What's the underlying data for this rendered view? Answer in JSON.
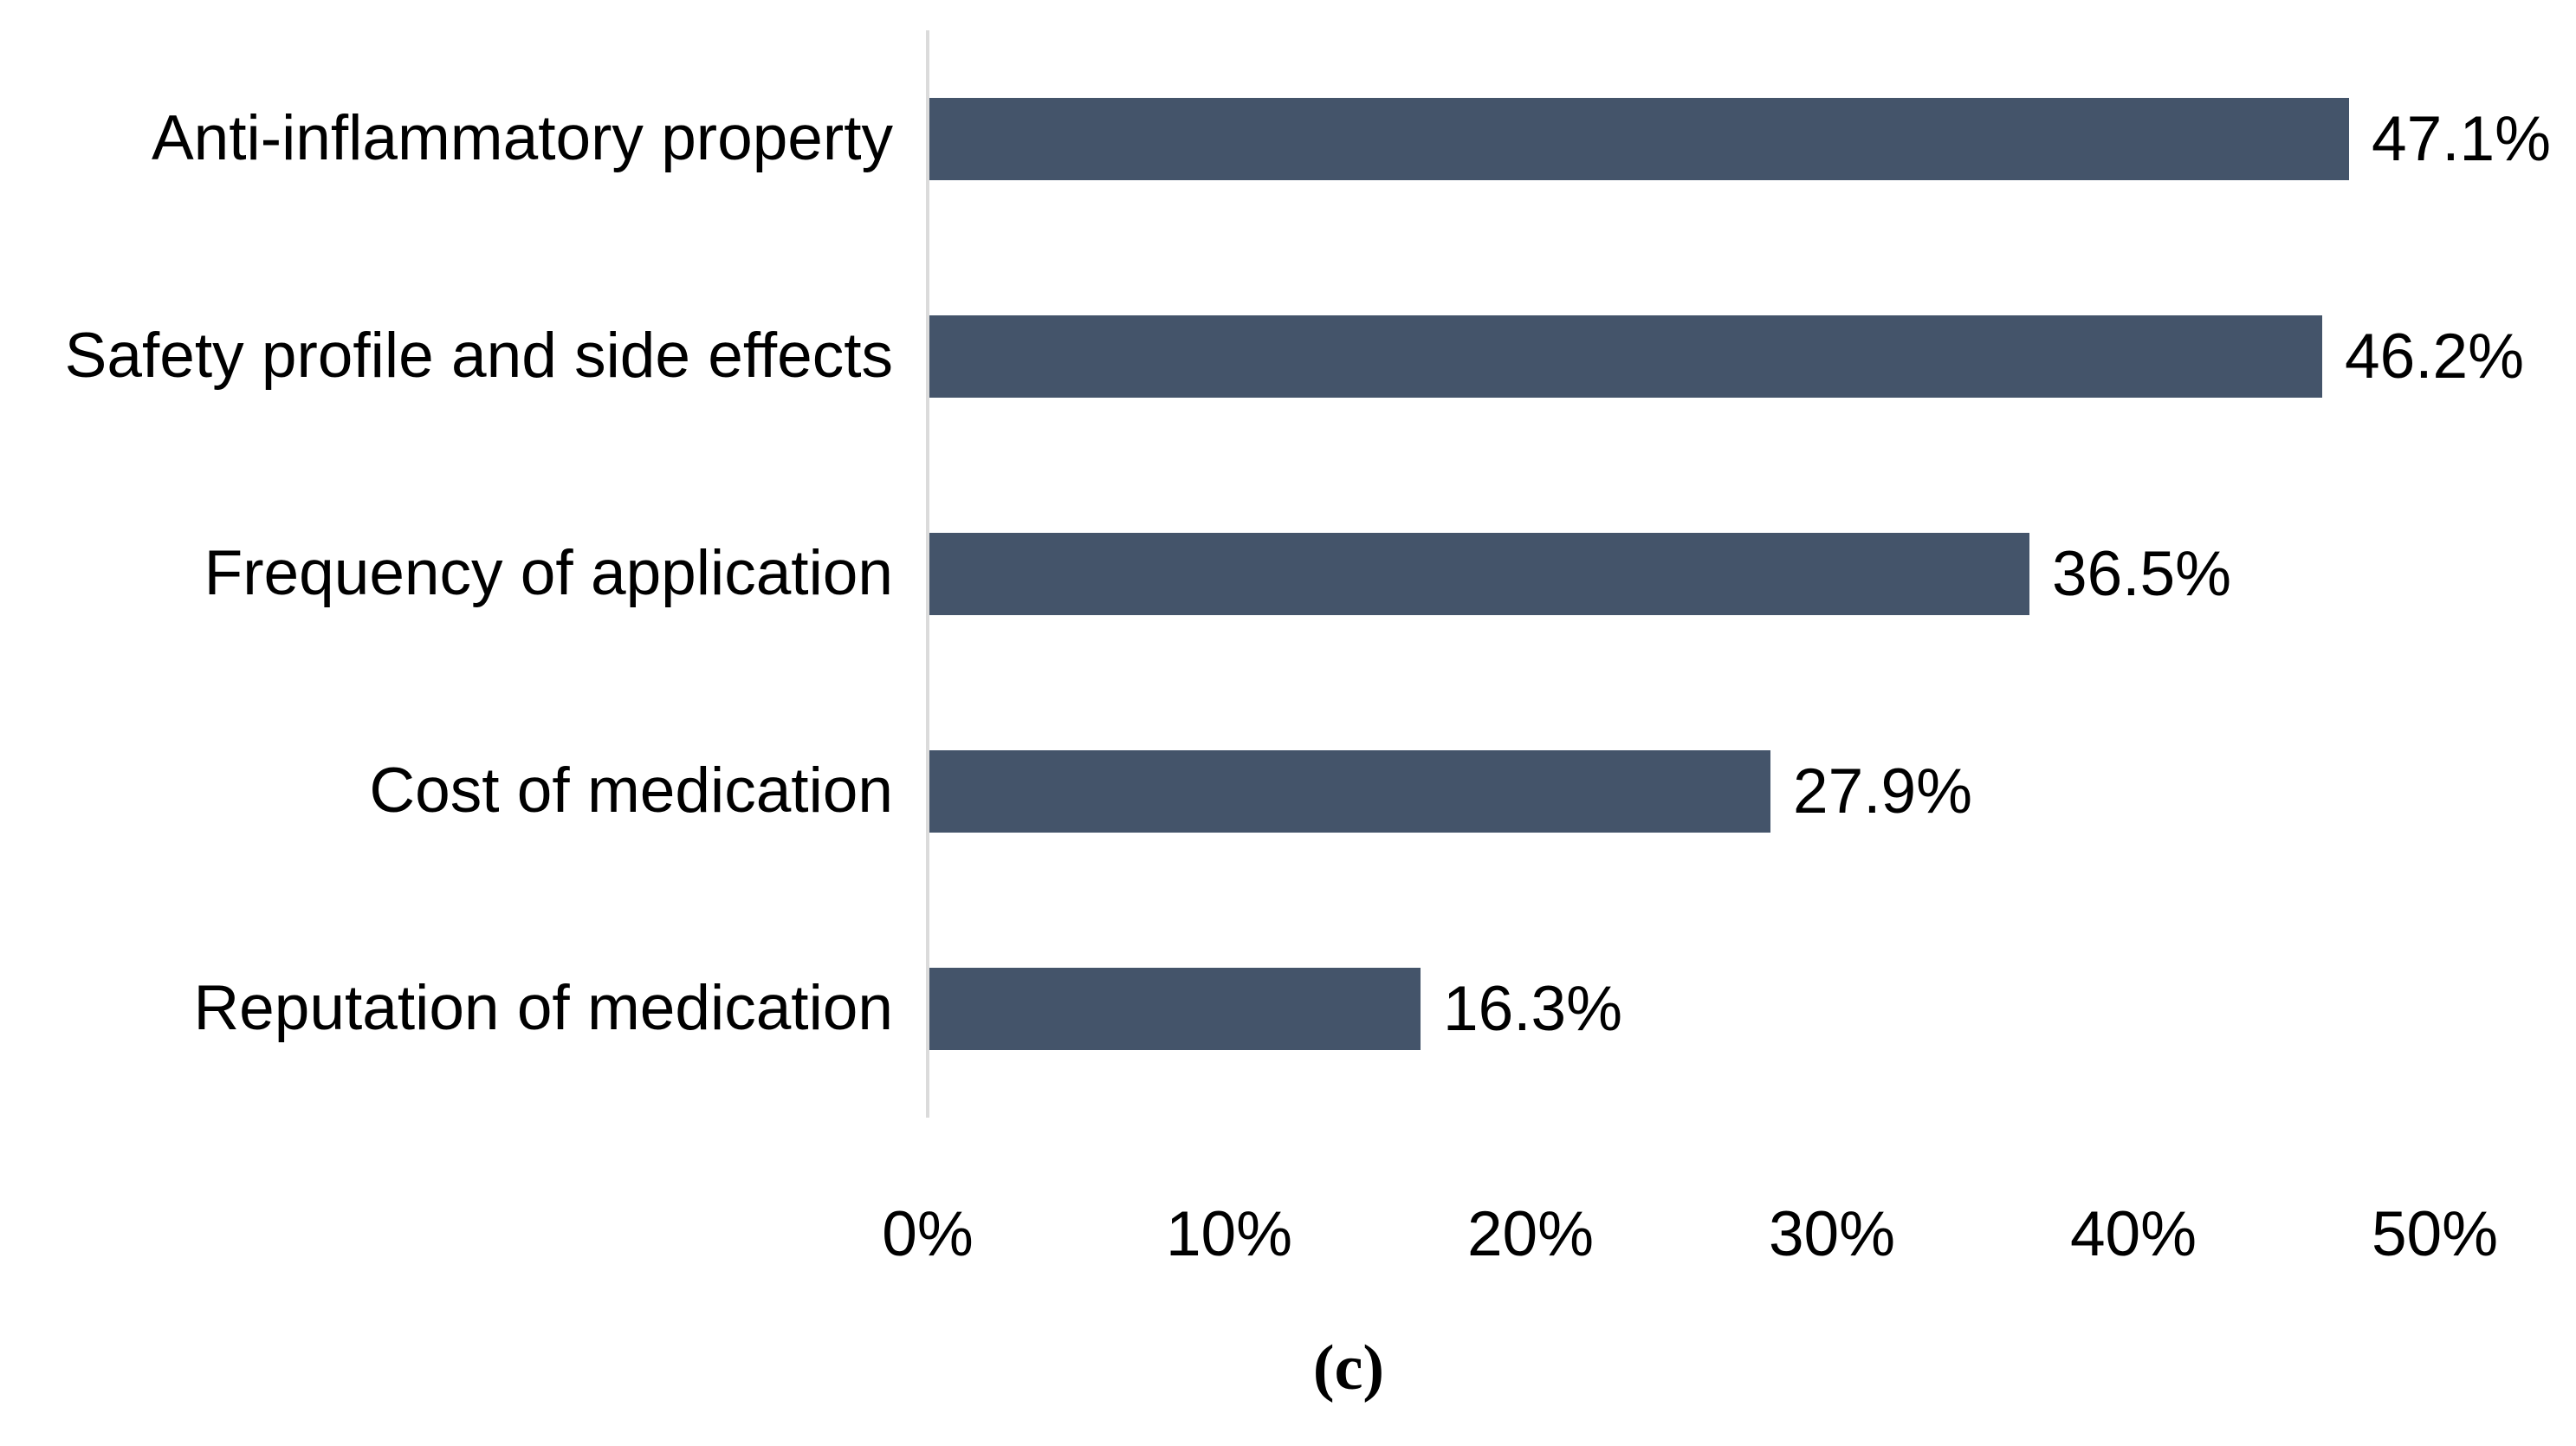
{
  "chart_data": {
    "type": "bar",
    "orientation": "horizontal",
    "title": "",
    "categories": [
      "Anti-inflammatory property",
      "Safety profile and side effects",
      "Frequency of application",
      "Cost of medication",
      "Reputation of medication"
    ],
    "values": [
      47.1,
      46.2,
      36.5,
      27.9,
      16.3
    ],
    "value_labels": [
      "47.1%",
      "46.2%",
      "36.5%",
      "27.9%",
      "16.3%"
    ],
    "x_ticks_percent": [
      0,
      10,
      20,
      30,
      40,
      50
    ],
    "x_tick_labels": [
      "0%",
      "10%",
      "20%",
      "30%",
      "40%",
      "50%"
    ],
    "xlim": [
      0,
      54.7
    ],
    "grid": false,
    "legend": false,
    "bar_color": "#44546A",
    "axis_line_color": "#DBDBDB",
    "text_color": "#000000",
    "caption": "(c)"
  }
}
